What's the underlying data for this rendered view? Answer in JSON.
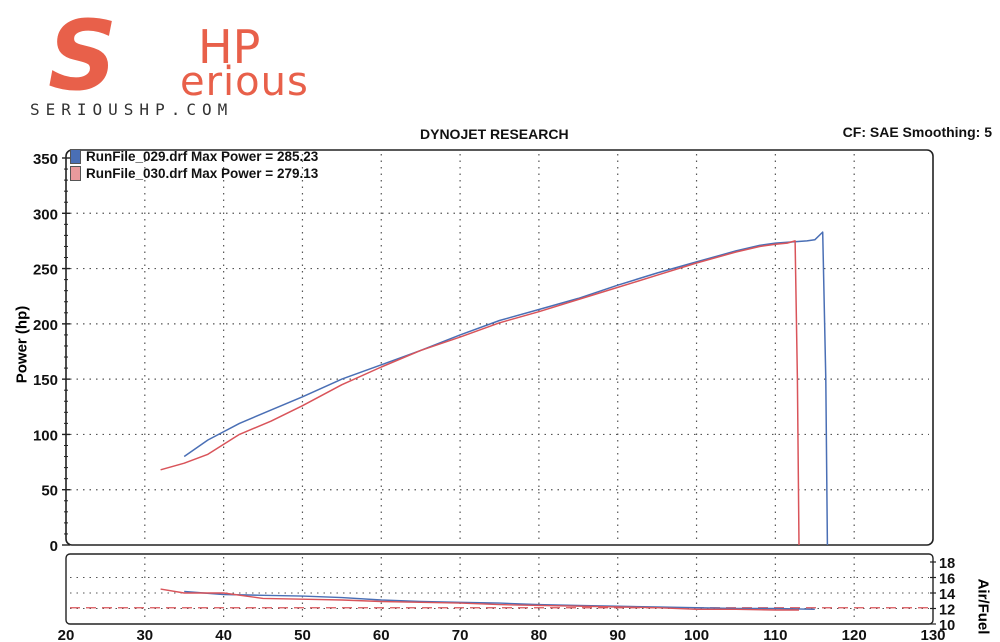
{
  "brand": {
    "logo_s": "S",
    "logo_hp": "HP",
    "logo_word": "erious",
    "url": "SERIOUSHP.COM",
    "accent": "#e8604a"
  },
  "header": {
    "title": "DYNOJET RESEARCH",
    "settings": "CF: SAE  Smoothing: 5"
  },
  "chart_data": [
    {
      "type": "line",
      "title": "DYNOJET RESEARCH",
      "ylabel": "Power (hp)",
      "xlabel": "",
      "xlim": [
        20,
        130
      ],
      "ylim": [
        0,
        350
      ],
      "x_ticks": [
        "20",
        "30",
        "40",
        "50",
        "60",
        "70",
        "80",
        "90",
        "100",
        "110",
        "120",
        "130"
      ],
      "y_ticks": [
        "0",
        "50",
        "100",
        "150",
        "200",
        "250",
        "300",
        "350"
      ],
      "grid": true,
      "legend_position": "top-left",
      "series": [
        {
          "name": "RunFile_029.drf Max Power = 285.23",
          "color": "#4a6fb5",
          "x": [
            35,
            38,
            42,
            46,
            50,
            55,
            60,
            65,
            70,
            75,
            80,
            85,
            90,
            95,
            100,
            105,
            108,
            110,
            112,
            114,
            115,
            116,
            116.4,
            116.6
          ],
          "y": [
            80,
            95,
            110,
            122,
            134,
            150,
            163,
            176,
            190,
            203,
            213,
            223,
            235,
            246,
            256,
            266,
            271,
            273,
            274,
            275,
            276,
            283,
            150,
            0
          ]
        },
        {
          "name": "RunFile_030.drf Max Power = 279.13",
          "color": "#d9545a",
          "x": [
            32,
            35,
            38,
            42,
            46,
            50,
            55,
            60,
            65,
            70,
            75,
            80,
            85,
            90,
            95,
            100,
            105,
            108,
            110,
            111.5,
            112.5,
            112.8,
            113
          ],
          "y": [
            68,
            74,
            82,
            100,
            112,
            126,
            145,
            161,
            176,
            188,
            201,
            211,
            222,
            233,
            244,
            255,
            265,
            270,
            272,
            273,
            275,
            150,
            0
          ]
        }
      ]
    },
    {
      "type": "line",
      "ylabel": "Air/Fuel",
      "xlim": [
        20,
        130
      ],
      "ylim": [
        10,
        18
      ],
      "y_ticks": [
        "10",
        "12",
        "14",
        "16",
        "18"
      ],
      "series": [
        {
          "color": "#4a6fb5",
          "x": [
            35,
            40,
            45,
            50,
            55,
            60,
            65,
            70,
            75,
            80,
            85,
            90,
            95,
            100,
            105,
            110,
            115
          ],
          "y": [
            14.2,
            13.8,
            13.7,
            13.6,
            13.4,
            13.1,
            12.9,
            12.8,
            12.7,
            12.5,
            12.4,
            12.3,
            12.2,
            12.1,
            12.0,
            12.0,
            11.9
          ]
        },
        {
          "color": "#d9545a",
          "x": [
            32,
            35,
            40,
            45,
            50,
            55,
            60,
            65,
            70,
            75,
            80,
            85,
            90,
            95,
            100,
            105,
            110,
            113
          ],
          "y": [
            14.5,
            14.0,
            14.0,
            13.3,
            13.2,
            13.1,
            12.9,
            12.8,
            12.7,
            12.5,
            12.4,
            12.3,
            12.2,
            12.1,
            11.9,
            11.9,
            11.8,
            11.8
          ]
        }
      ],
      "reference_line": {
        "y": 12.1,
        "color": "#d9545a"
      }
    }
  ]
}
